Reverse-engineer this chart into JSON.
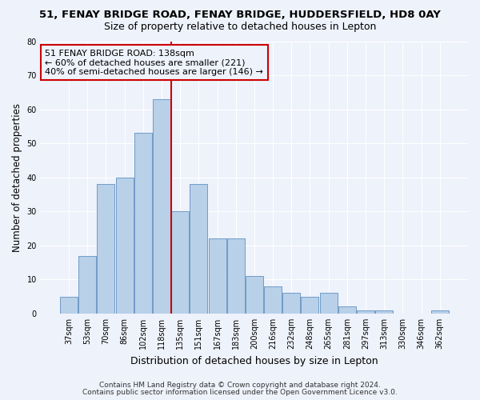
{
  "title1": "51, FENAY BRIDGE ROAD, FENAY BRIDGE, HUDDERSFIELD, HD8 0AY",
  "title2": "Size of property relative to detached houses in Lepton",
  "xlabel": "Distribution of detached houses by size in Lepton",
  "ylabel": "Number of detached properties",
  "bar_labels": [
    "37sqm",
    "53sqm",
    "70sqm",
    "86sqm",
    "102sqm",
    "118sqm",
    "135sqm",
    "151sqm",
    "167sqm",
    "183sqm",
    "200sqm",
    "216sqm",
    "232sqm",
    "248sqm",
    "265sqm",
    "281sqm",
    "297sqm",
    "313sqm",
    "330sqm",
    "346sqm",
    "362sqm"
  ],
  "bar_heights": [
    5,
    17,
    38,
    40,
    53,
    63,
    30,
    38,
    22,
    22,
    11,
    8,
    6,
    5,
    6,
    2,
    1,
    1,
    0,
    0,
    1
  ],
  "bar_color": "#b8d0e8",
  "bar_edge_color": "#6090c0",
  "vline_color": "#cc0000",
  "vline_pos": 6.5,
  "annotation_line1": "51 FENAY BRIDGE ROAD: 138sqm",
  "annotation_line2": "← 60% of detached houses are smaller (221)",
  "annotation_line3": "40% of semi-detached houses are larger (146) →",
  "annotation_box_color": "#cc0000",
  "ylim": [
    0,
    80
  ],
  "yticks": [
    0,
    10,
    20,
    30,
    40,
    50,
    60,
    70,
    80
  ],
  "bg_color": "#eef2fb",
  "grid_color": "#ffffff",
  "footer1": "Contains HM Land Registry data © Crown copyright and database right 2024.",
  "footer2": "Contains public sector information licensed under the Open Government Licence v3.0.",
  "title1_fontsize": 9.5,
  "title2_fontsize": 9,
  "xlabel_fontsize": 9,
  "ylabel_fontsize": 8.5,
  "tick_fontsize": 7,
  "annotation_fontsize": 8,
  "footer_fontsize": 6.5
}
